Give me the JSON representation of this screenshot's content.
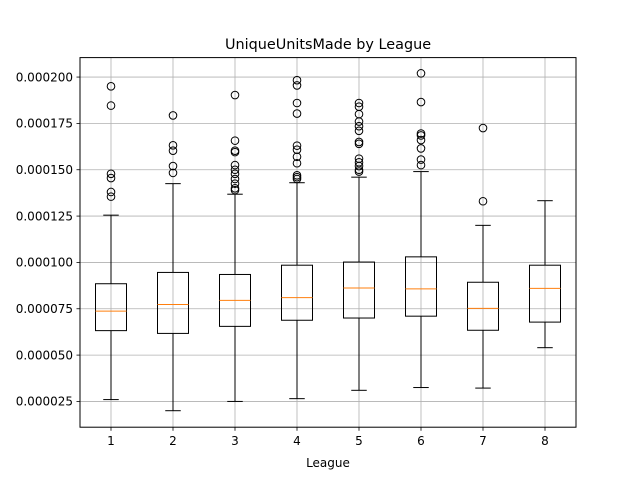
{
  "chart_data": {
    "type": "box",
    "title": "UniqueUnitsMade by League",
    "xlabel": "League",
    "ylabel": "",
    "ylim": [
      1.11e-05,
      0.0002105
    ],
    "grid": true,
    "categories": [
      "1",
      "2",
      "3",
      "4",
      "5",
      "6",
      "7",
      "8"
    ],
    "yticks": [
      2.5e-05,
      5e-05,
      7.5e-05,
      0.0001,
      0.000125,
      0.00015,
      0.000175,
      0.0002
    ],
    "ytick_labels": [
      "0.000025",
      "0.000050",
      "0.000075",
      "0.000100",
      "0.000125",
      "0.000150",
      "0.000175",
      "0.000200"
    ],
    "boxes": [
      {
        "category": "1",
        "whisker_low": 2.6e-05,
        "q1": 6.32e-05,
        "median": 7.37e-05,
        "q3": 8.85e-05,
        "whisker_high": 0.0001255,
        "fliers": [
          0.000195,
          0.0001846,
          0.0001478,
          0.0001455,
          0.000138,
          0.0001355
        ]
      },
      {
        "category": "2",
        "whisker_low": 2e-05,
        "q1": 6.17e-05,
        "median": 7.73e-05,
        "q3": 9.46e-05,
        "whisker_high": 0.0001425,
        "fliers": [
          0.0001793,
          0.0001632,
          0.0001603,
          0.000152,
          0.0001483
        ]
      },
      {
        "category": "3",
        "whisker_low": 2.5e-05,
        "q1": 6.55e-05,
        "median": 7.95e-05,
        "q3": 9.35e-05,
        "whisker_high": 0.0001368,
        "fliers": [
          0.0001903,
          0.0001657,
          0.0001603,
          0.0001595,
          0.0001525,
          0.00015,
          0.0001478,
          0.000145,
          0.0001425,
          0.00014,
          0.000139
        ]
      },
      {
        "category": "4",
        "whisker_low": 2.65e-05,
        "q1": 6.88e-05,
        "median": 8.1e-05,
        "q3": 9.85e-05,
        "whisker_high": 0.000143,
        "fliers": [
          0.0001983,
          0.0001955,
          0.000186,
          0.0001803,
          0.000163,
          0.0001608,
          0.000157,
          0.0001535,
          0.000147,
          0.000146,
          0.000145
        ]
      },
      {
        "category": "5",
        "whisker_low": 3.1e-05,
        "q1": 7e-05,
        "median": 8.62e-05,
        "q3": 0.0001002,
        "whisker_high": 0.000146,
        "fliers": [
          0.000186,
          0.000184,
          0.00018,
          0.000176,
          0.0001735,
          0.000171,
          0.000165,
          0.000164,
          0.000156,
          0.000154,
          0.000152,
          0.00015,
          0.000149
        ]
      },
      {
        "category": "6",
        "whisker_low": 3.25e-05,
        "q1": 7.1e-05,
        "median": 8.57e-05,
        "q3": 0.000103,
        "whisker_high": 0.000149,
        "fliers": [
          0.000202,
          0.0001865,
          0.0001695,
          0.0001685,
          0.000166,
          0.0001615,
          0.0001555,
          0.0001525
        ]
      },
      {
        "category": "7",
        "whisker_low": 3.22e-05,
        "q1": 6.34e-05,
        "median": 7.52e-05,
        "q3": 8.93e-05,
        "whisker_high": 0.00012,
        "fliers": [
          0.0001725,
          0.000133
        ]
      },
      {
        "category": "8",
        "whisker_low": 5.4e-05,
        "q1": 6.78e-05,
        "median": 8.6e-05,
        "q3": 9.85e-05,
        "whisker_high": 0.0001333,
        "fliers": []
      }
    ],
    "colors": {
      "box": "#000000",
      "median": "#ff7f0e",
      "grid": "#b0b0b0",
      "flier": "#000000"
    }
  }
}
